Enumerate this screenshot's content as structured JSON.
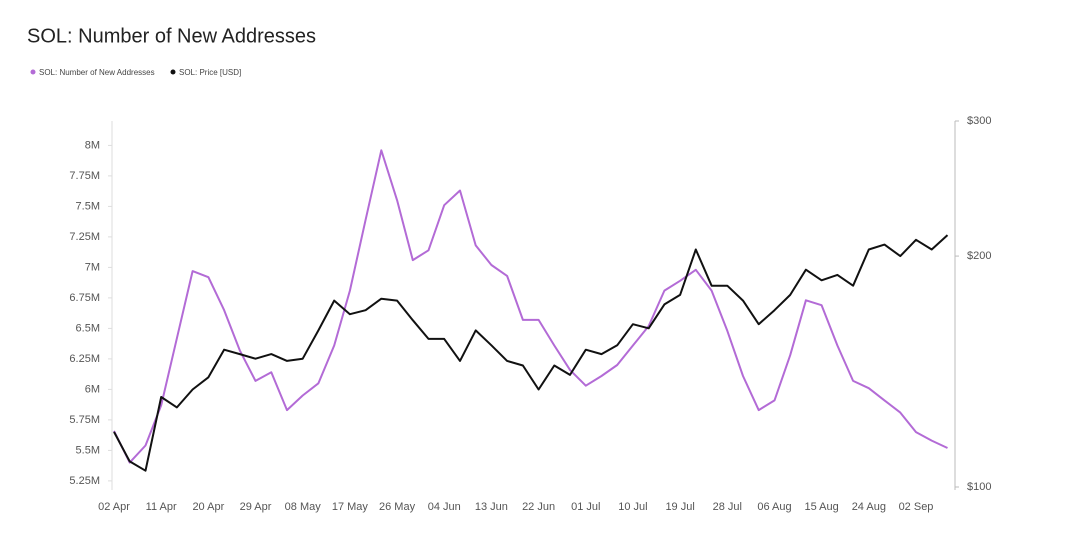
{
  "chart_data": {
    "type": "line",
    "title": "SOL: Number of New Addresses",
    "categories": [
      "02 Apr",
      null,
      null,
      "11 Apr",
      null,
      null,
      "20 Apr",
      null,
      null,
      "29 Apr",
      null,
      null,
      "08 May",
      null,
      null,
      "17 May",
      null,
      null,
      "26 May",
      null,
      null,
      "04 Jun",
      null,
      null,
      "13 Jun",
      null,
      null,
      "22 Jun",
      null,
      null,
      "01 Jul",
      null,
      null,
      "10 Jul",
      null,
      null,
      "19 Jul",
      null,
      null,
      "28 Jul",
      null,
      null,
      "06 Aug",
      null,
      null,
      "15 Aug",
      null,
      null,
      "24 Aug",
      null,
      null,
      "02 Sep",
      null,
      null
    ],
    "series": [
      {
        "name": "SOL: Number of New Addresses",
        "color": "#b36bd6",
        "values": [
          5.66,
          5.4,
          5.54,
          5.87,
          6.42,
          6.97,
          6.92,
          6.65,
          6.32,
          6.07,
          6.14,
          5.83,
          5.95,
          6.05,
          6.36,
          6.81,
          7.39,
          7.96,
          7.55,
          7.06,
          7.14,
          7.51,
          7.63,
          7.18,
          7.02,
          6.93,
          6.57,
          6.57,
          6.36,
          6.16,
          6.03,
          6.11,
          6.2,
          6.36,
          6.52,
          6.81,
          6.89,
          6.98,
          6.81,
          6.48,
          6.11,
          5.83,
          5.91,
          6.28,
          6.73,
          6.69,
          6.36,
          6.07,
          6.01,
          5.91,
          5.81,
          5.65,
          5.58,
          5.52
        ]
      },
      {
        "name": "SOL: Price [USD]",
        "color": "#111111",
        "axis": "y2",
        "values": [
          118,
          108,
          105,
          131,
          127,
          134,
          139,
          151,
          149,
          147,
          149,
          146,
          147,
          160,
          175,
          168,
          170,
          176,
          175,
          165,
          156,
          156,
          146,
          160,
          153,
          146,
          144,
          134,
          144,
          140,
          151,
          149,
          153,
          163,
          161,
          173,
          178,
          204,
          183,
          183,
          175,
          163,
          170,
          178,
          192,
          186,
          189,
          183,
          204,
          207,
          200,
          210,
          204,
          213
        ]
      }
    ],
    "ylim": [
      5.2,
      8.2
    ],
    "yticks": [
      {
        "value": 5.25,
        "label": "5.25M"
      },
      {
        "value": 5.5,
        "label": "5.5M"
      },
      {
        "value": 5.75,
        "label": "5.75M"
      },
      {
        "value": 6,
        "label": "6M"
      },
      {
        "value": 6.25,
        "label": "6.25M"
      },
      {
        "value": 6.5,
        "label": "6.5M"
      },
      {
        "value": 6.75,
        "label": "6.75M"
      },
      {
        "value": 7,
        "label": "7M"
      },
      {
        "value": 7.25,
        "label": "7.25M"
      },
      {
        "value": 7.5,
        "label": "7.5M"
      },
      {
        "value": 7.75,
        "label": "7.75M"
      },
      {
        "value": 8,
        "label": "8M"
      }
    ],
    "y2lim": [
      100,
      300
    ],
    "y2ticks": [
      {
        "value": 100,
        "label": "$100"
      },
      {
        "value": 200,
        "label": "$200"
      },
      {
        "value": 300,
        "label": "$300"
      }
    ],
    "y2log": true,
    "grid": false,
    "legend": "top-left"
  }
}
